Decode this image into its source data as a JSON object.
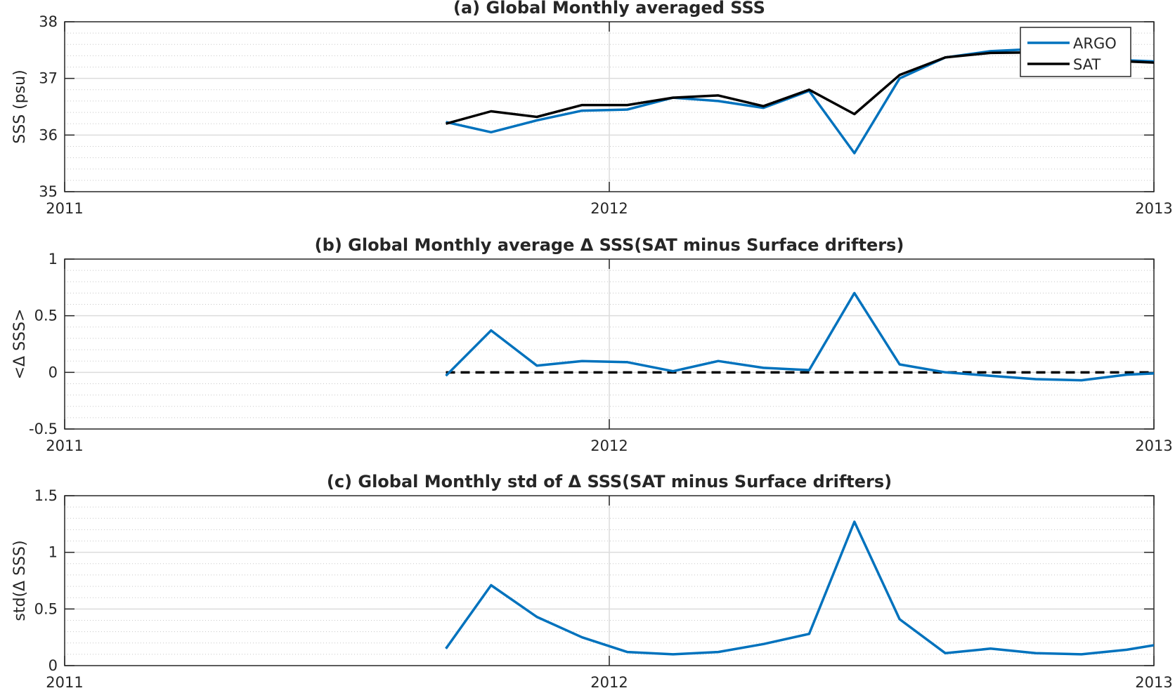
{
  "colors": {
    "argo": "#0072BD",
    "sat": "#000000",
    "zero_line": "#000000",
    "axes": "#262626",
    "grid": "#dcdcdc"
  },
  "chart_data": [
    {
      "type": "line",
      "title": "(a) Global Monthly averaged SSS",
      "ylabel": "SSS (psu)",
      "xlabel": "",
      "xlim": [
        2011,
        2013
      ],
      "ylim": [
        35,
        38
      ],
      "xticks": [
        "2011",
        "2012",
        "2013"
      ],
      "yticks": [
        "35",
        "36",
        "37",
        "38"
      ],
      "grid": true,
      "minor_grid": true,
      "legend": {
        "placement": "top-right",
        "entries": [
          "ARGO",
          "SAT"
        ]
      },
      "x": [
        2011.7,
        2011.783,
        2011.867,
        2011.95,
        2012.033,
        2012.117,
        2012.2,
        2012.283,
        2012.367,
        2012.45,
        2012.533,
        2012.617,
        2012.7,
        2012.783,
        2012.867,
        2012.95,
        2013.0
      ],
      "series": [
        {
          "name": "ARGO",
          "values": [
            36.23,
            36.05,
            36.26,
            36.43,
            36.45,
            36.66,
            36.6,
            36.48,
            36.78,
            35.68,
            37.0,
            37.37,
            37.48,
            37.52,
            37.38,
            37.32,
            37.3
          ]
        },
        {
          "name": "SAT",
          "values": [
            36.2,
            36.42,
            36.32,
            36.53,
            36.53,
            36.66,
            36.7,
            36.51,
            36.8,
            36.37,
            37.06,
            37.37,
            37.45,
            37.46,
            37.35,
            37.3,
            37.28
          ]
        }
      ]
    },
    {
      "type": "line",
      "title": "(b) Global Monthly average Δ SSS(SAT minus Surface drifters)",
      "ylabel": "<Δ SSS>",
      "xlabel": "",
      "xlim": [
        2011,
        2013
      ],
      "ylim": [
        -0.5,
        1
      ],
      "xticks": [
        "2011",
        "2012",
        "2013"
      ],
      "yticks": [
        "-0.5",
        "0",
        "0.5",
        "1"
      ],
      "grid": true,
      "minor_grid": true,
      "reference_line": {
        "y": 0,
        "x_from": 2011.7,
        "x_to": 2013.0,
        "style": "dashed"
      },
      "x": [
        2011.7,
        2011.783,
        2011.867,
        2011.95,
        2012.033,
        2012.117,
        2012.2,
        2012.283,
        2012.367,
        2012.45,
        2012.533,
        2012.617,
        2012.7,
        2012.783,
        2012.867,
        2012.95,
        2013.0
      ],
      "series": [
        {
          "values": [
            -0.03,
            0.37,
            0.06,
            0.1,
            0.09,
            0.01,
            0.1,
            0.04,
            0.02,
            0.7,
            0.07,
            0.0,
            -0.03,
            -0.06,
            -0.07,
            -0.02,
            -0.01
          ]
        }
      ]
    },
    {
      "type": "line",
      "title": "(c) Global Monthly std of Δ SSS(SAT minus Surface drifters)",
      "ylabel": "std(Δ SSS)",
      "xlabel": "",
      "xlim": [
        2011,
        2013
      ],
      "ylim": [
        0,
        1.5
      ],
      "xticks": [
        "2011",
        "2012",
        "2013"
      ],
      "yticks": [
        "0",
        "0.5",
        "1",
        "1.5"
      ],
      "grid": true,
      "minor_grid": true,
      "x": [
        2011.7,
        2011.783,
        2011.867,
        2011.95,
        2012.033,
        2012.117,
        2012.2,
        2012.283,
        2012.367,
        2012.45,
        2012.533,
        2012.617,
        2012.7,
        2012.783,
        2012.867,
        2012.95,
        2013.0
      ],
      "series": [
        {
          "values": [
            0.15,
            0.71,
            0.43,
            0.25,
            0.12,
            0.1,
            0.12,
            0.19,
            0.28,
            1.27,
            0.41,
            0.11,
            0.15,
            0.11,
            0.1,
            0.14,
            0.18
          ]
        }
      ]
    }
  ]
}
